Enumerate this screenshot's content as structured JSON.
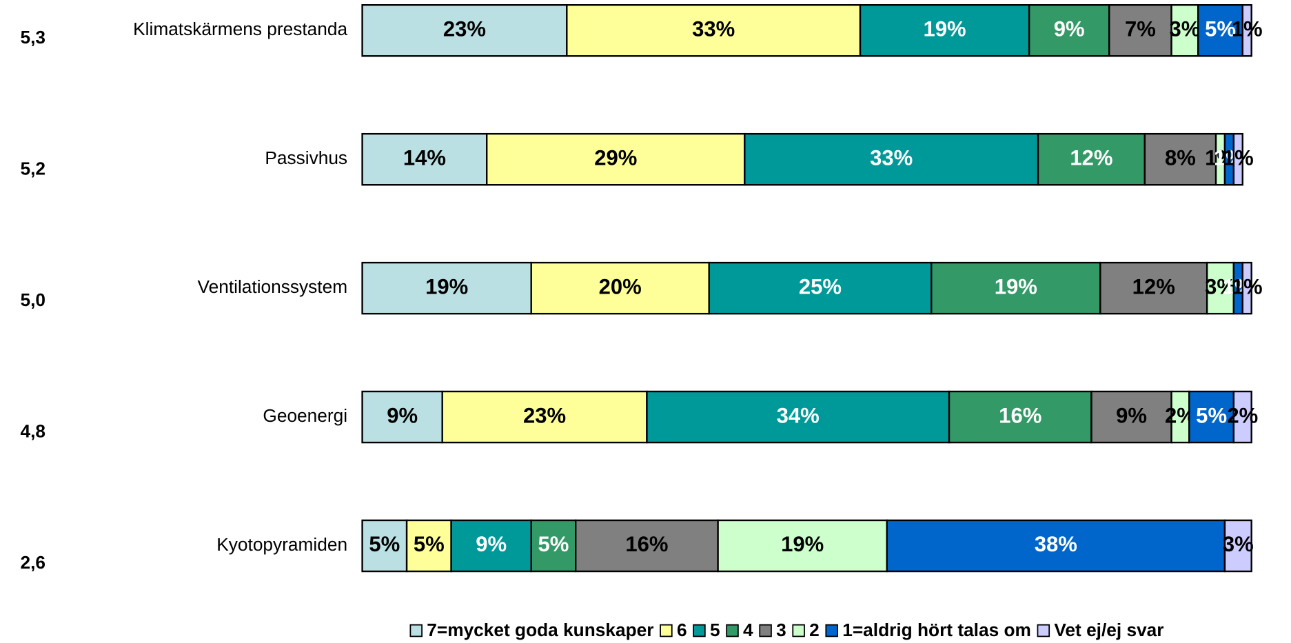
{
  "chart_data": {
    "type": "stacked_bar_horizontal",
    "categories": [
      "Klimatskärmens prestanda",
      "Passivhus",
      "Ventilationssystem",
      "Geoenergi",
      "Kyotopyramiden"
    ],
    "means": [
      5.3,
      5.2,
      5.0,
      4.8,
      2.6
    ],
    "mean_labels": [
      "5,3",
      "5,2",
      "5,0",
      "4,8",
      "2,6"
    ],
    "xlim": [
      0,
      100
    ],
    "unit": "%",
    "series": [
      {
        "name": "7=mycket goda kunskaper",
        "color": "#bbe0e3",
        "label_color": "#000000",
        "values": [
          23,
          14,
          19,
          9,
          5
        ]
      },
      {
        "name": "6",
        "color": "#ffff99",
        "label_color": "#000000",
        "values": [
          33,
          29,
          20,
          23,
          5
        ]
      },
      {
        "name": "5",
        "color": "#009999",
        "label_color": "#ffffff",
        "values": [
          19,
          33,
          25,
          34,
          9
        ]
      },
      {
        "name": "4",
        "color": "#339966",
        "label_color": "#ffffff",
        "values": [
          9,
          12,
          19,
          16,
          5
        ]
      },
      {
        "name": "3",
        "color": "#808080",
        "label_color": "#000000",
        "values": [
          7,
          8,
          12,
          9,
          16
        ]
      },
      {
        "name": "2",
        "color": "#ccffcc",
        "label_color": "#000000",
        "values": [
          3,
          1,
          3,
          2,
          19
        ]
      },
      {
        "name": "1=aldrig hört talas om",
        "color": "#0066cc",
        "label_color": "#ffffff",
        "values": [
          5,
          1,
          1,
          5,
          38
        ]
      },
      {
        "name": "Vet ej/ej svar",
        "color": "#ccccff",
        "label_color": "#000000",
        "values": [
          1,
          1,
          1,
          2,
          3
        ]
      }
    ]
  }
}
